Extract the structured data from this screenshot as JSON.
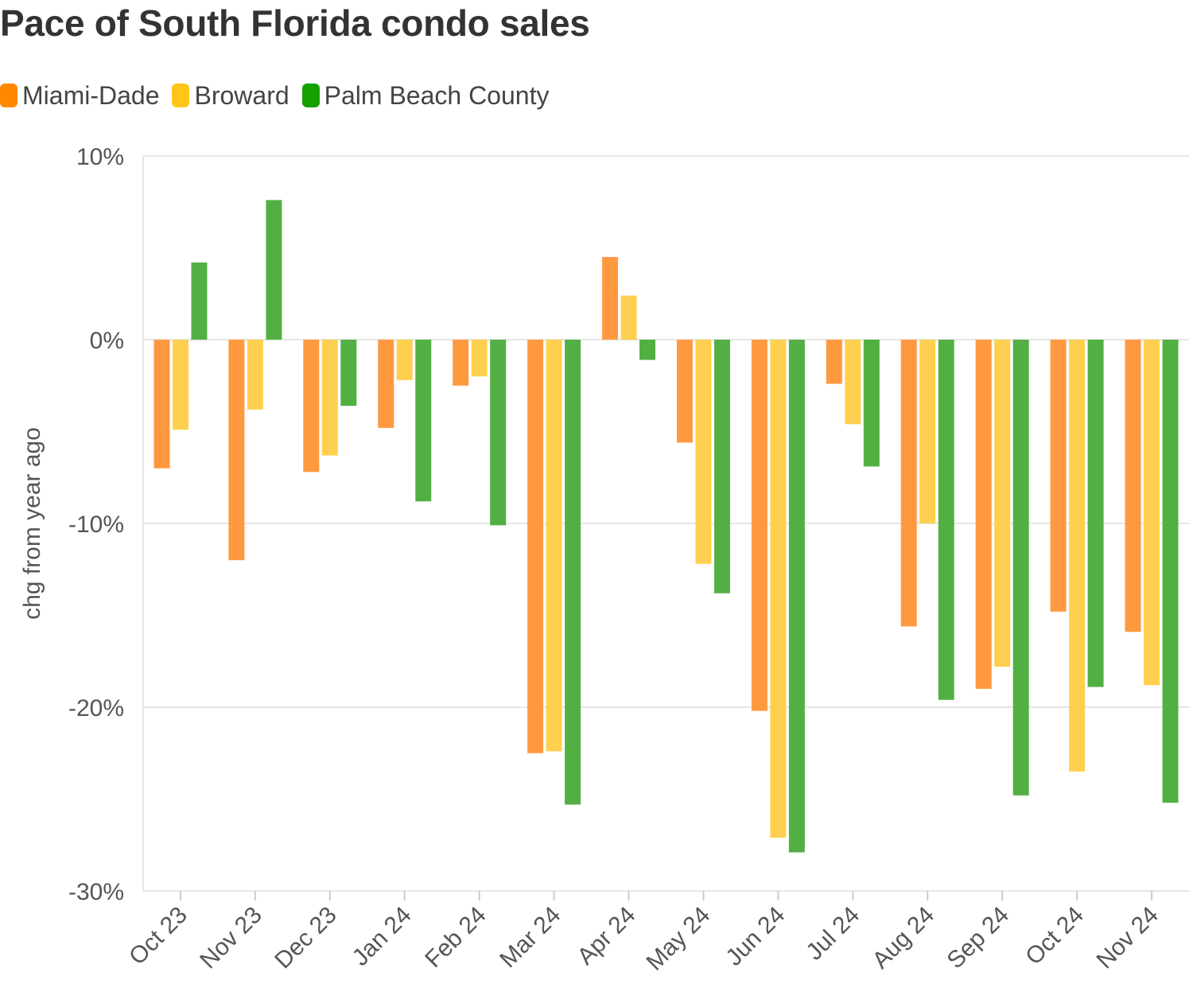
{
  "chart_data": {
    "type": "bar",
    "title": "Pace of South Florida condo sales",
    "ylabel": "chg from year ago",
    "xlabel": "",
    "ylim": [
      -30,
      10
    ],
    "y_ticks": [
      10,
      0,
      -10,
      -20,
      -30
    ],
    "y_tick_labels": [
      "10%",
      "0%",
      "-10%",
      "-20%",
      "-30%"
    ],
    "legend_position": "top-left",
    "grid": true,
    "categories": [
      "Oct 23",
      "Nov 23",
      "Dec 23",
      "Jan 24",
      "Feb 24",
      "Mar 24",
      "Apr 24",
      "May 24",
      "Jun 24",
      "Jul 24",
      "Aug 24",
      "Sep 24",
      "Oct 24",
      "Nov 24"
    ],
    "series": [
      {
        "name": "Miami-Dade",
        "color": "#ff9940",
        "swatch": "#ff8800",
        "values": [
          -7.0,
          -12.0,
          -7.2,
          -4.8,
          -2.5,
          -22.5,
          4.5,
          -5.6,
          -20.2,
          -2.4,
          -15.6,
          -19.0,
          -14.8,
          -15.9
        ]
      },
      {
        "name": "Broward",
        "color": "#ffcf4f",
        "swatch": "#ffc619",
        "values": [
          -4.9,
          -3.8,
          -6.3,
          -2.2,
          -2.0,
          -22.4,
          2.4,
          -12.2,
          -27.1,
          -4.6,
          -10.0,
          -17.8,
          -23.5,
          -18.8
        ]
      },
      {
        "name": "Palm Beach County",
        "color": "#52b043",
        "swatch": "#14a000",
        "values": [
          4.2,
          7.6,
          -3.6,
          -8.8,
          -10.1,
          -25.3,
          -1.1,
          -13.8,
          -27.9,
          -6.9,
          -19.6,
          -24.8,
          -18.9,
          -25.2
        ]
      }
    ]
  }
}
